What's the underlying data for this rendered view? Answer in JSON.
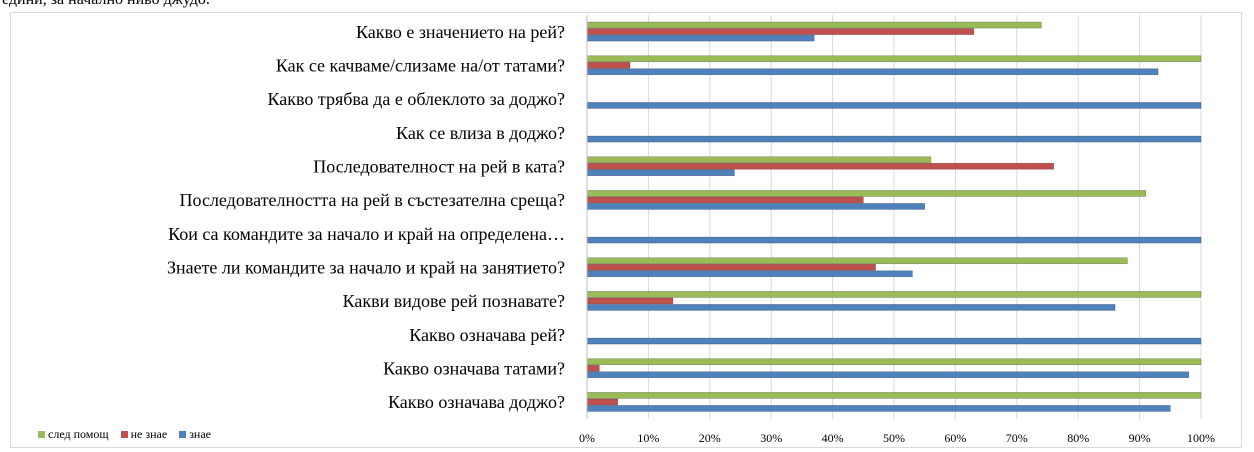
{
  "header_text": "едини, за начално ниво джудо.",
  "chart_data": {
    "type": "bar",
    "orientation": "horizontal",
    "categories": [
      "Какво е значението на рей?",
      "Как се качваме/слизаме на/от татами?",
      "Какво трябва да е облеклото за доджо?",
      "Как се влиза в доджо?",
      "Последователност на рей в ката?",
      "Последователността на рей в състезателна среща?",
      "Кои са командите за начало и край на определена…",
      "Знаете ли командите за начало и край на занятието?",
      "Какви видове рей познавате?",
      "Какво означава рей?",
      "Какво означава татами?",
      "Какво означава доджо?"
    ],
    "series": [
      {
        "name": "след помощ",
        "color": "#9bbb59",
        "values": [
          74,
          100,
          0,
          0,
          56,
          91,
          0,
          88,
          100,
          0,
          100,
          100
        ]
      },
      {
        "name": "не знае",
        "color": "#c0504d",
        "values": [
          63,
          7,
          0,
          0,
          76,
          45,
          0,
          47,
          14,
          0,
          2,
          5
        ]
      },
      {
        "name": "знае",
        "color": "#4f81bd",
        "values": [
          37,
          93,
          100,
          100,
          24,
          55,
          100,
          53,
          86,
          100,
          98,
          95
        ]
      }
    ],
    "x_ticks": [
      "0%",
      "10%",
      "20%",
      "30%",
      "40%",
      "50%",
      "60%",
      "70%",
      "80%",
      "90%",
      "100%"
    ],
    "xlim": [
      0,
      100
    ],
    "grid": true,
    "legend_position": "bottom-left"
  }
}
